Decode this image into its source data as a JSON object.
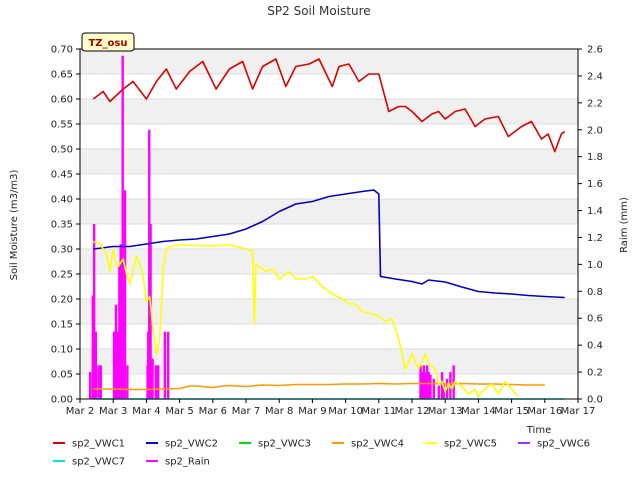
{
  "chart_data": {
    "type": "line",
    "title": "SP2 Soil Moisture",
    "site_label": "TZ_osu",
    "xlabel": "Time",
    "ylabel": "Soil Moisture (m3/m3)",
    "y2label": "Raim (mm)",
    "ylim": [
      0,
      0.7
    ],
    "y2lim": [
      0,
      2.6
    ],
    "xlim": [
      0,
      15
    ],
    "x_ticks": [
      "Mar 2",
      "Mar 3",
      "Mar 4",
      "Mar 5",
      "Mar 6",
      "Mar 7",
      "Mar 8",
      "Mar 9",
      "Mar 10",
      "Mar 11",
      "Mar 12",
      "Mar 13",
      "Mar 14",
      "Mar 15",
      "Mar 16",
      "Mar 17"
    ],
    "y_ticks": [
      "0.00",
      "0.05",
      "0.10",
      "0.15",
      "0.20",
      "0.25",
      "0.30",
      "0.35",
      "0.40",
      "0.45",
      "0.50",
      "0.55",
      "0.60",
      "0.65",
      "0.70"
    ],
    "y2_ticks": [
      "0.0",
      "0.2",
      "0.4",
      "0.6",
      "0.8",
      "1.0",
      "1.2",
      "1.4",
      "1.6",
      "1.8",
      "2.0",
      "2.2",
      "2.4",
      "2.6"
    ],
    "grid": true,
    "legend_position": "bottom",
    "series": [
      {
        "name": "sp2_VWC1",
        "color": "#dd0000",
        "axis": "left",
        "x": [
          0.4,
          0.7,
          0.9,
          1.3,
          1.6,
          2.0,
          2.3,
          2.6,
          2.9,
          3.3,
          3.7,
          4.1,
          4.5,
          4.9,
          5.2,
          5.5,
          5.9,
          6.2,
          6.5,
          6.9,
          7.2,
          7.6,
          7.8,
          8.1,
          8.4,
          8.7,
          9.0,
          9.3,
          9.6,
          9.8,
          10.0,
          10.3,
          10.6,
          10.8,
          11.0,
          11.3,
          11.6,
          11.9,
          12.2,
          12.6,
          12.9,
          13.3,
          13.6,
          13.9,
          14.1,
          14.3,
          14.5,
          14.6
        ],
        "values": [
          0.6,
          0.615,
          0.595,
          0.62,
          0.635,
          0.6,
          0.635,
          0.66,
          0.62,
          0.655,
          0.675,
          0.62,
          0.66,
          0.675,
          0.62,
          0.665,
          0.68,
          0.625,
          0.665,
          0.67,
          0.68,
          0.625,
          0.665,
          0.67,
          0.635,
          0.65,
          0.65,
          0.575,
          0.585,
          0.585,
          0.575,
          0.555,
          0.57,
          0.575,
          0.56,
          0.575,
          0.58,
          0.545,
          0.56,
          0.565,
          0.525,
          0.545,
          0.555,
          0.52,
          0.53,
          0.495,
          0.53,
          0.535
        ]
      },
      {
        "name": "sp2_VWC2",
        "color": "#0000cc",
        "axis": "left",
        "x": [
          0.4,
          1.0,
          1.5,
          2.0,
          2.5,
          3.0,
          3.5,
          4.0,
          4.5,
          5.0,
          5.5,
          6.0,
          6.5,
          7.0,
          7.5,
          8.0,
          8.5,
          8.85,
          9.0,
          9.05,
          9.5,
          10.0,
          10.3,
          10.5,
          11.0,
          11.5,
          12.0,
          12.5,
          13.0,
          13.5,
          14.0,
          14.6
        ],
        "values": [
          0.3,
          0.305,
          0.305,
          0.31,
          0.315,
          0.318,
          0.32,
          0.325,
          0.33,
          0.34,
          0.355,
          0.375,
          0.39,
          0.395,
          0.405,
          0.41,
          0.415,
          0.418,
          0.41,
          0.245,
          0.24,
          0.235,
          0.23,
          0.238,
          0.234,
          0.224,
          0.215,
          0.212,
          0.21,
          0.207,
          0.205,
          0.203
        ]
      },
      {
        "name": "sp2_VWC3",
        "color": "#00dd00",
        "axis": "left",
        "x": [],
        "values": []
      },
      {
        "name": "sp2_VWC4",
        "color": "#ff9900",
        "axis": "left",
        "x": [
          0.4,
          1.0,
          1.5,
          2.0,
          2.5,
          3.0,
          3.3,
          3.5,
          4.0,
          4.3,
          4.5,
          5.0,
          5.5,
          6.0,
          6.5,
          7.0,
          7.5,
          8.0,
          8.5,
          9.0,
          9.5,
          10.0,
          10.5,
          11.0,
          11.5,
          12.0,
          12.5,
          13.0,
          13.5,
          14.0
        ],
        "values": [
          0.02,
          0.02,
          0.019,
          0.019,
          0.02,
          0.021,
          0.026,
          0.026,
          0.023,
          0.026,
          0.027,
          0.025,
          0.028,
          0.027,
          0.029,
          0.029,
          0.029,
          0.03,
          0.03,
          0.031,
          0.03,
          0.031,
          0.031,
          0.03,
          0.031,
          0.03,
          0.03,
          0.029,
          0.028,
          0.028
        ]
      },
      {
        "name": "sp2_VWC5",
        "color": "#ffff00",
        "axis": "left",
        "x": [
          0.4,
          0.6,
          0.8,
          0.9,
          1.0,
          1.05,
          1.15,
          1.3,
          1.4,
          1.5,
          1.7,
          1.8,
          1.9,
          2.0,
          2.1,
          2.2,
          2.3,
          2.4,
          2.45,
          2.5,
          2.6,
          2.7,
          3.0,
          3.5,
          4.0,
          4.5,
          5.0,
          5.2,
          5.25,
          5.3,
          5.4,
          5.6,
          5.8,
          6.0,
          6.3,
          6.5,
          6.8,
          7.0,
          7.3,
          7.6,
          7.9,
          8.1,
          8.3,
          8.5,
          8.8,
          9.0,
          9.2,
          9.4,
          9.6,
          9.8,
          10.0,
          10.2,
          10.4,
          10.5,
          10.7,
          10.8,
          10.9,
          11.0,
          11.1,
          11.2,
          11.3,
          11.5,
          11.7,
          11.9,
          12.0,
          12.2,
          12.4,
          12.6,
          12.8,
          13.0,
          13.2
        ],
        "values": [
          0.315,
          0.31,
          0.29,
          0.255,
          0.3,
          0.28,
          0.265,
          0.28,
          0.25,
          0.23,
          0.285,
          0.27,
          0.245,
          0.195,
          0.205,
          0.14,
          0.09,
          0.12,
          0.18,
          0.26,
          0.3,
          0.305,
          0.308,
          0.307,
          0.306,
          0.308,
          0.3,
          0.295,
          0.15,
          0.27,
          0.265,
          0.255,
          0.26,
          0.24,
          0.255,
          0.24,
          0.24,
          0.245,
          0.225,
          0.21,
          0.2,
          0.19,
          0.19,
          0.175,
          0.17,
          0.165,
          0.155,
          0.16,
          0.12,
          0.06,
          0.09,
          0.06,
          0.09,
          0.07,
          0.06,
          0.03,
          0.035,
          0.015,
          0.03,
          0.02,
          0.035,
          0.025,
          0.01,
          0.02,
          0.005,
          0.02,
          0.03,
          0.01,
          0.035,
          0.02,
          0.005
        ]
      },
      {
        "name": "sp2_VWC6",
        "color": "#9933ff",
        "axis": "left",
        "x": [],
        "values": []
      },
      {
        "name": "sp2_VWC7",
        "color": "#00e5e5",
        "axis": "left",
        "x": [
          0.4,
          14.6
        ],
        "values": [
          0.0,
          0.0
        ]
      },
      {
        "name": "sp2_Rain",
        "color": "#ff00ff",
        "axis": "right",
        "type": "bar",
        "x": [
          0.3,
          0.38,
          0.42,
          0.47,
          0.55,
          0.62,
          1.02,
          1.08,
          1.12,
          1.18,
          1.22,
          1.28,
          1.35,
          1.42,
          2.03,
          2.05,
          2.08,
          2.12,
          2.18,
          2.28,
          2.35,
          2.55,
          2.65,
          10.25,
          10.3,
          10.35,
          10.4,
          10.45,
          10.5,
          10.55,
          10.65,
          10.8,
          10.9,
          10.95,
          11.05,
          11.15,
          11.25
        ],
        "values": [
          0.2,
          0.77,
          1.3,
          0.5,
          0.25,
          0.25,
          0.5,
          0.7,
          0.5,
          1.0,
          1.15,
          2.55,
          1.55,
          0.25,
          0.25,
          0.5,
          2.0,
          1.3,
          0.3,
          0.25,
          0.25,
          0.5,
          0.5,
          0.25,
          0.2,
          0.25,
          0.2,
          0.25,
          0.2,
          0.18,
          0.15,
          0.1,
          0.2,
          0.12,
          0.15,
          0.2,
          0.25
        ]
      }
    ]
  }
}
